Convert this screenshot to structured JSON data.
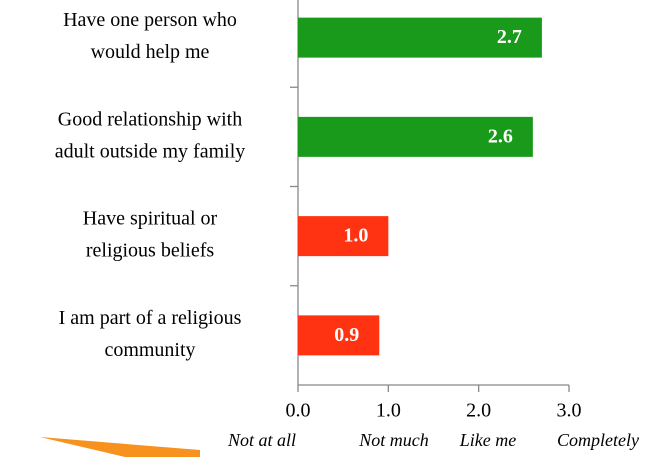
{
  "chart_data": {
    "type": "bar",
    "orientation": "horizontal",
    "categories": [
      [
        "Have one person who",
        "would help me"
      ],
      [
        "Good relationship with",
        "adult outside my family"
      ],
      [
        "Have spiritual or",
        "religious beliefs"
      ],
      [
        "I am part of a religious",
        "community"
      ]
    ],
    "values": [
      2.7,
      2.6,
      1.0,
      0.9
    ],
    "value_labels": [
      "2.7",
      "2.6",
      "1.0",
      "0.9"
    ],
    "colors": [
      "#1a9a1a",
      "#1a9a1a",
      "#ff3311",
      "#ff3311"
    ],
    "xlim": [
      0,
      3
    ],
    "xticks": [
      {
        "value": 0,
        "label": "0.0"
      },
      {
        "value": 1,
        "label": "1.0"
      },
      {
        "value": 2,
        "label": "2.0"
      },
      {
        "value": 3,
        "label": "3.0"
      }
    ],
    "xtick_descriptions": [
      "Not at all",
      "Not much",
      "Like me",
      "Completely"
    ]
  }
}
